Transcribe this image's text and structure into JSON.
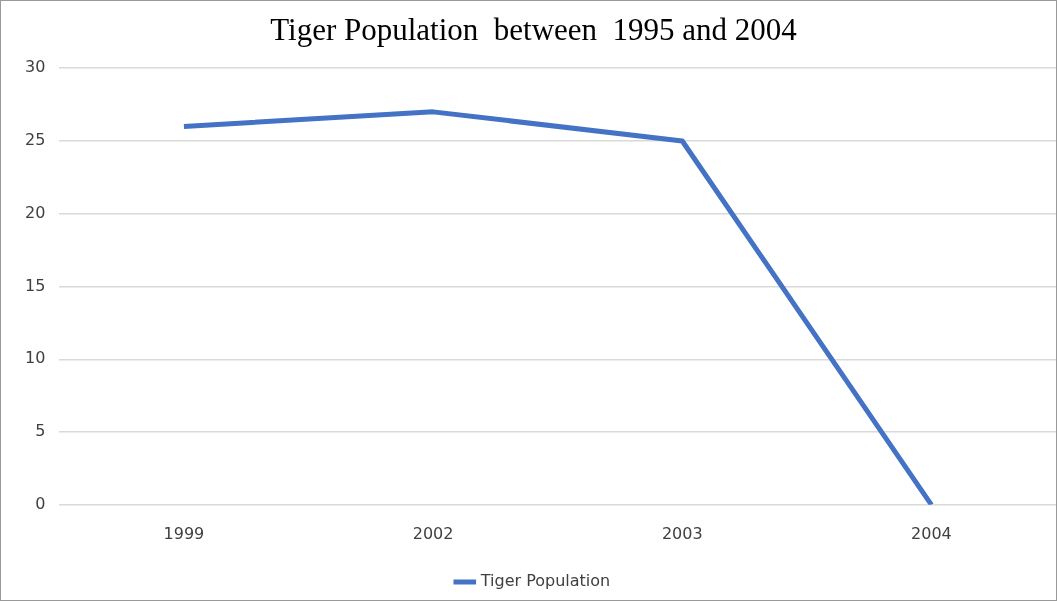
{
  "chart_data": {
    "type": "line",
    "title": "Tiger Population  between  1995 and 2004",
    "categories": [
      "1999",
      "2002",
      "2003",
      "2004"
    ],
    "series": [
      {
        "name": "Tiger Population",
        "color": "#4472c4",
        "values": [
          26,
          27,
          25,
          0
        ]
      }
    ],
    "ylim": [
      0,
      30
    ],
    "yticks": [
      0,
      5,
      10,
      15,
      20,
      25,
      30
    ],
    "grid": "y",
    "legend": "bottom",
    "marker": "none",
    "line_style": "solid"
  }
}
